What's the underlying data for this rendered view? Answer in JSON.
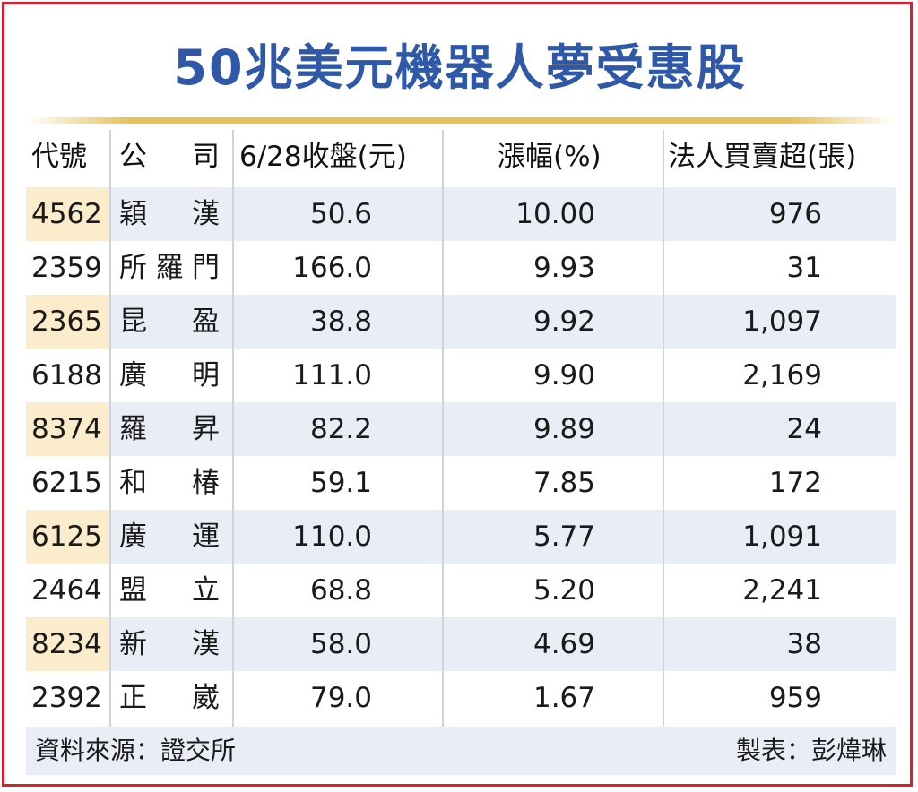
{
  "title": "50兆美元機器人夢受惠股",
  "chart_data": {
    "type": "table",
    "title": "50兆美元機器人夢受惠股",
    "columns": [
      "代號",
      "公　司",
      "6/28收盤(元)",
      "漲幅(%)",
      "法人買賣超(張)"
    ],
    "rows": [
      {
        "code": "4562",
        "name": "穎漢",
        "close": "50.6",
        "change": "10.00",
        "net": "976"
      },
      {
        "code": "2359",
        "name": "所羅門",
        "close": "166.0",
        "change": "9.93",
        "net": "31"
      },
      {
        "code": "2365",
        "name": "昆盈",
        "close": "38.8",
        "change": "9.92",
        "net": "1,097"
      },
      {
        "code": "6188",
        "name": "廣明",
        "close": "111.0",
        "change": "9.90",
        "net": "2,169"
      },
      {
        "code": "8374",
        "name": "羅昇",
        "close": "82.2",
        "change": "9.89",
        "net": "24"
      },
      {
        "code": "6215",
        "name": "和椿",
        "close": "59.1",
        "change": "7.85",
        "net": "172"
      },
      {
        "code": "6125",
        "name": "廣運",
        "close": "110.0",
        "change": "5.77",
        "net": "1,091"
      },
      {
        "code": "2464",
        "name": "盟立",
        "close": "68.8",
        "change": "5.20",
        "net": "2,241"
      },
      {
        "code": "8234",
        "name": "新漢",
        "close": "58.0",
        "change": "4.69",
        "net": "38"
      },
      {
        "code": "2392",
        "name": "正崴",
        "close": "79.0",
        "change": "1.67",
        "net": "959"
      }
    ]
  },
  "footer": {
    "source": "資料來源：證交所",
    "maker": "製表：彭煒琳"
  },
  "colors": {
    "title": "#2f59a8",
    "border": "#d4232e",
    "rule": "#e6c25a",
    "row_shade": "#e9edf5",
    "code_shade": "#fbeccb"
  }
}
